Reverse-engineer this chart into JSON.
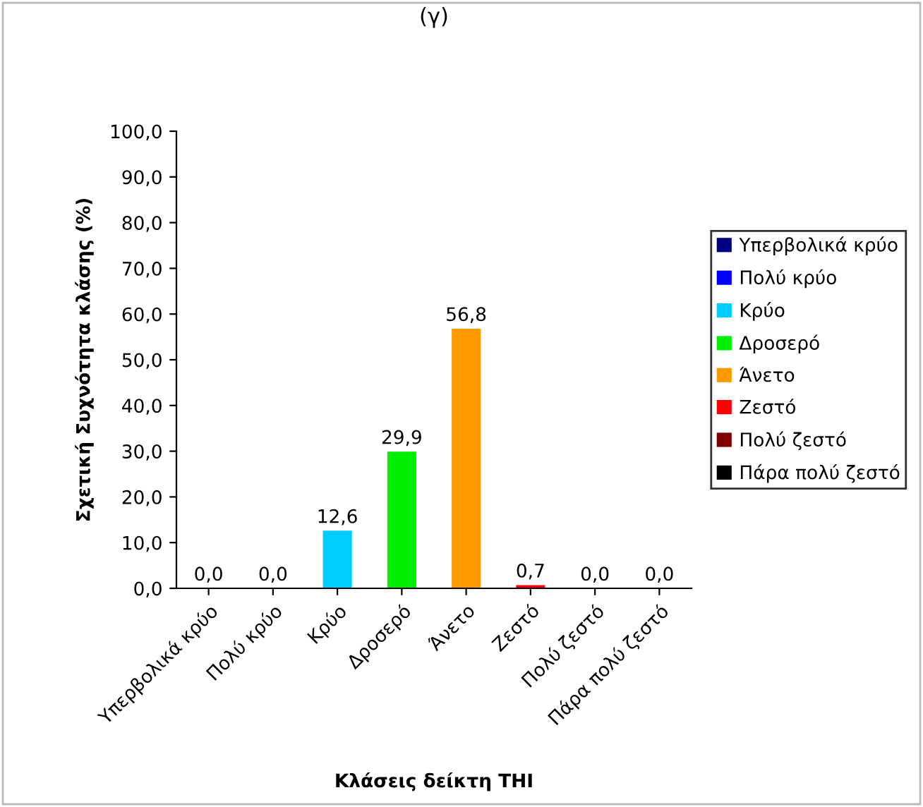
{
  "chart_data": {
    "type": "bar",
    "title": "(γ)",
    "xlabel": "Κλάσεις δείκτη THI",
    "ylabel": "Σχετική Συχνότητα κλάσης (%)",
    "categories": [
      "Υπερβολικά κρύο",
      "Πολύ κρύο",
      "Κρύο",
      "Δροσερό",
      "Άνετο",
      "Ζεστό",
      "Πολύ ζεστό",
      "Πάρα πολύ ζεστό"
    ],
    "series": [
      {
        "name": "Υπερβολικά κρύο",
        "color": "#000080",
        "values": [
          0.0,
          null,
          null,
          null,
          null,
          null,
          null,
          null
        ],
        "value_labels": [
          "0,0",
          null,
          null,
          null,
          null,
          null,
          null,
          null
        ]
      },
      {
        "name": "Πολύ κρύο",
        "color": "#0000ff",
        "values": [
          null,
          0.0,
          null,
          null,
          null,
          null,
          null,
          null
        ],
        "value_labels": [
          null,
          "0,0",
          null,
          null,
          null,
          null,
          null,
          null
        ]
      },
      {
        "name": "Κρύο",
        "color": "#00ccff",
        "values": [
          null,
          null,
          12.6,
          null,
          null,
          null,
          null,
          null
        ],
        "value_labels": [
          null,
          null,
          "12,6",
          null,
          null,
          null,
          null,
          null
        ]
      },
      {
        "name": "Δροσερό",
        "color": "#00ee00",
        "values": [
          null,
          null,
          null,
          29.9,
          null,
          null,
          null,
          null
        ],
        "value_labels": [
          null,
          null,
          null,
          "29,9",
          null,
          null,
          null,
          null
        ]
      },
      {
        "name": "Άνετο",
        "color": "#ff9900",
        "values": [
          null,
          null,
          null,
          null,
          56.8,
          null,
          null,
          null
        ],
        "value_labels": [
          null,
          null,
          null,
          null,
          "56,8",
          null,
          null,
          null
        ]
      },
      {
        "name": "Ζεστό",
        "color": "#ff0000",
        "values": [
          null,
          null,
          null,
          null,
          null,
          0.7,
          null,
          null
        ],
        "value_labels": [
          null,
          null,
          null,
          null,
          null,
          "0,7",
          null,
          null
        ]
      },
      {
        "name": "Πολύ ζεστό",
        "color": "#800000",
        "values": [
          null,
          null,
          null,
          null,
          null,
          null,
          0.0,
          null
        ],
        "value_labels": [
          null,
          null,
          null,
          null,
          null,
          null,
          "0,0",
          null
        ]
      },
      {
        "name": "Πάρα πολύ ζεστό",
        "color": "#000000",
        "values": [
          null,
          null,
          null,
          null,
          null,
          null,
          null,
          0.0
        ],
        "value_labels": [
          null,
          null,
          null,
          null,
          null,
          null,
          null,
          "0,0"
        ]
      }
    ],
    "ylim": [
      0,
      100
    ],
    "yticks": [
      {
        "value": 0,
        "label": "0,0"
      },
      {
        "value": 10,
        "label": "10,0"
      },
      {
        "value": 20,
        "label": "20,0"
      },
      {
        "value": 30,
        "label": "30,0"
      },
      {
        "value": 40,
        "label": "40,0"
      },
      {
        "value": 50,
        "label": "50,0"
      },
      {
        "value": 60,
        "label": "60,0"
      },
      {
        "value": 70,
        "label": "70,0"
      },
      {
        "value": 80,
        "label": "80,0"
      },
      {
        "value": 90,
        "label": "90,0"
      },
      {
        "value": 100,
        "label": "100,0"
      }
    ],
    "grid": false,
    "legend": "right"
  }
}
